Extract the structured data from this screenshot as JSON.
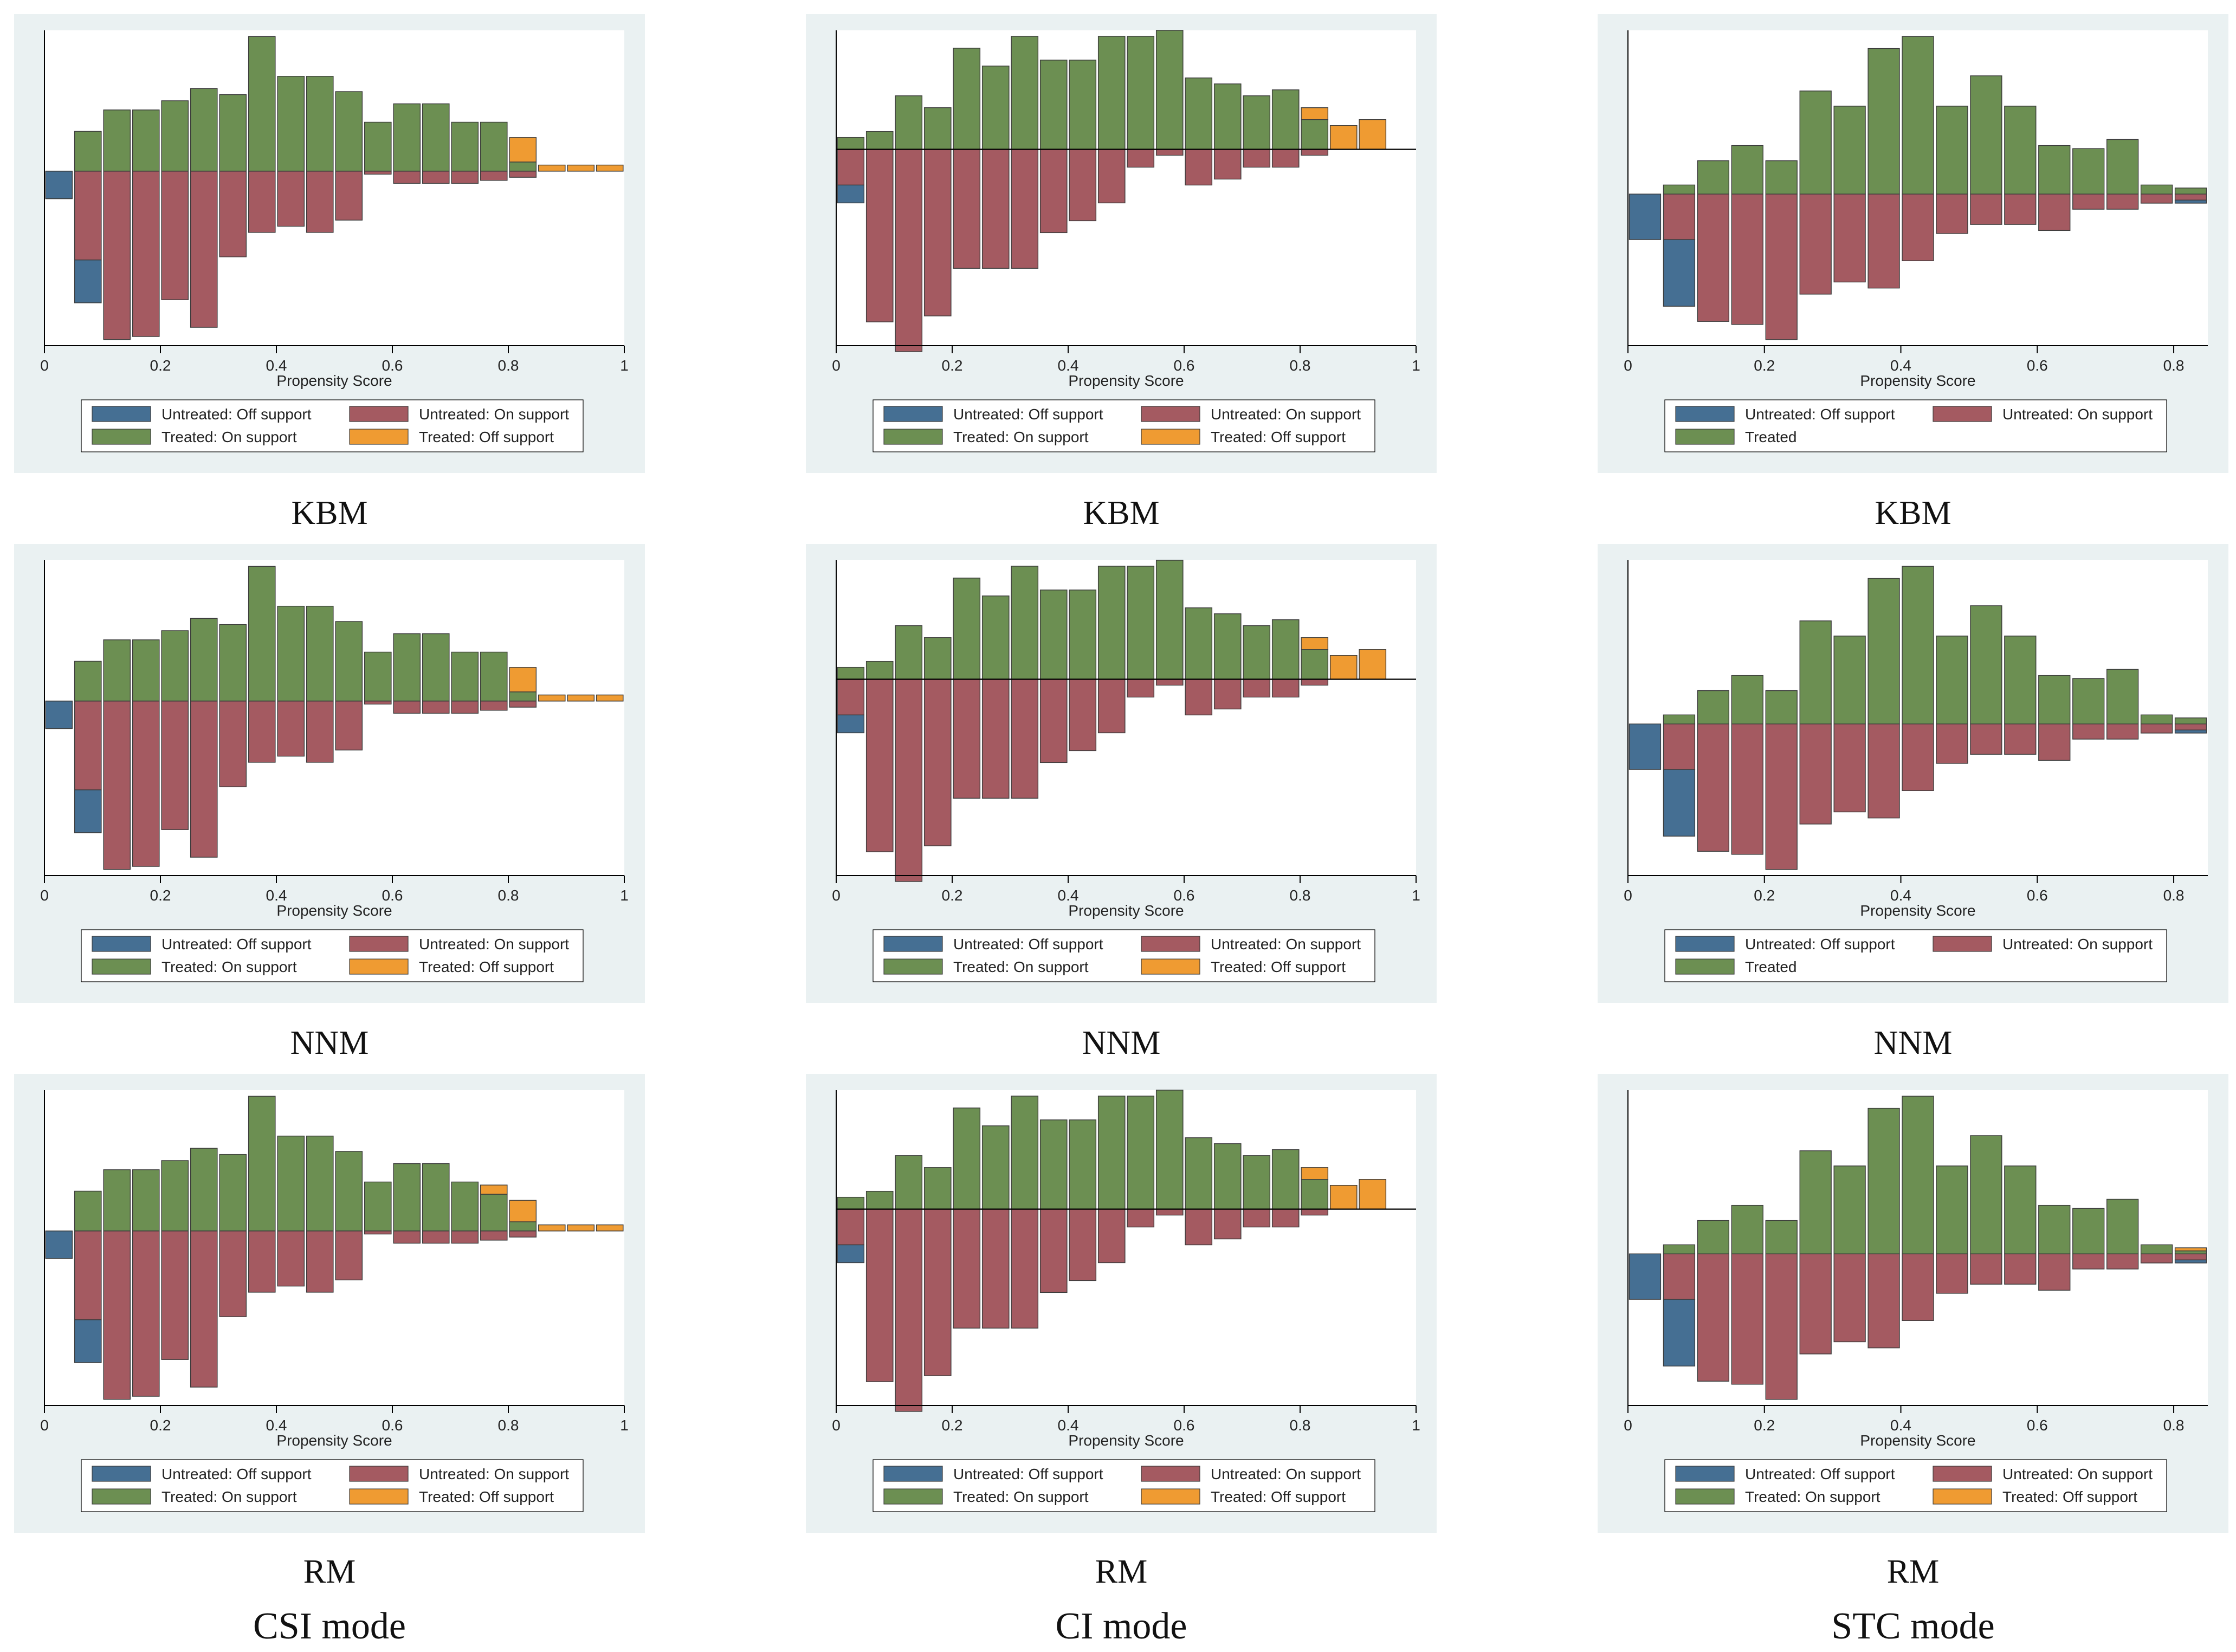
{
  "colors": {
    "untreated_off": "#456f93",
    "untreated_on": "#a45a61",
    "treated_on": "#6c8f52",
    "treated_off": "#ef9b32",
    "panel_bg": "#eaf1f2"
  },
  "captions": {
    "row1": "KBM",
    "row2": "NNM",
    "row3": "RM"
  },
  "modes": [
    "CSI mode",
    "CI mode",
    "STC mode"
  ],
  "legend_labels": {
    "untreated_off": "Untreated: Off support",
    "untreated_on": "Untreated: On support",
    "treated_on": "Treated: On support",
    "treated_off": "Treated: Off support",
    "treated": "Treated"
  },
  "axis": {
    "xlabel": "Propensity Score"
  },
  "chart_data": [
    {
      "type": "bar",
      "panel": "r1c1",
      "mode": "CSI mode",
      "method": "KBM",
      "xlabel": "Propensity Score",
      "xlim": [
        0,
        1
      ],
      "ticks": [
        "0",
        "0.2",
        "0.4",
        "0.6",
        "0.8",
        "1"
      ],
      "tick_values": [
        0,
        0.2,
        0.4,
        0.6,
        0.8,
        1
      ],
      "ylim": [
        -0.57,
        0.46
      ],
      "bin_width": 0.05,
      "legend": [
        "untreated_off",
        "untreated_on",
        "treated_on",
        "treated_off"
      ],
      "bins": [
        0.025,
        0.075,
        0.125,
        0.175,
        0.225,
        0.275,
        0.325,
        0.375,
        0.425,
        0.475,
        0.525,
        0.575,
        0.625,
        0.675,
        0.725,
        0.775,
        0.825,
        0.875,
        0.925,
        0.975
      ],
      "treated_on": [
        0,
        0.13,
        0.2,
        0.2,
        0.23,
        0.27,
        0.25,
        0.44,
        0.31,
        0.31,
        0.26,
        0.16,
        0.22,
        0.22,
        0.16,
        0.16,
        0.03,
        0,
        0,
        0
      ],
      "treated_off": [
        0,
        0,
        0,
        0,
        0,
        0,
        0,
        0,
        0,
        0,
        0,
        0,
        0,
        0,
        0,
        0,
        0.08,
        0.02,
        0.02,
        0.02
      ],
      "untreated_on": [
        0,
        0.29,
        0.55,
        0.54,
        0.42,
        0.51,
        0.28,
        0.2,
        0.18,
        0.2,
        0.16,
        0.01,
        0.04,
        0.04,
        0.04,
        0.03,
        0.02,
        0,
        0,
        0
      ],
      "untreated_off": [
        0.09,
        0.14,
        0,
        0,
        0,
        0,
        0,
        0,
        0,
        0,
        0,
        0,
        0,
        0,
        0,
        0,
        0,
        0,
        0,
        0
      ]
    },
    {
      "type": "bar",
      "panel": "r1c2",
      "mode": "CI mode",
      "method": "KBM",
      "xlabel": "Propensity Score",
      "xlim": [
        0,
        1
      ],
      "ticks": [
        "0",
        "0.2",
        "0.4",
        "0.6",
        "0.8",
        "1"
      ],
      "tick_values": [
        0,
        0.2,
        0.4,
        0.6,
        0.8,
        1
      ],
      "ylim": [
        -0.33,
        0.2
      ],
      "bin_width": 0.05,
      "zero_line": true,
      "legend": [
        "untreated_off",
        "untreated_on",
        "treated_on",
        "treated_off"
      ],
      "bins": [
        0.025,
        0.075,
        0.125,
        0.175,
        0.225,
        0.275,
        0.325,
        0.375,
        0.425,
        0.475,
        0.525,
        0.575,
        0.625,
        0.675,
        0.725,
        0.775,
        0.825,
        0.875,
        0.925,
        0.975
      ],
      "treated_on": [
        0.02,
        0.03,
        0.09,
        0.07,
        0.17,
        0.14,
        0.19,
        0.15,
        0.15,
        0.19,
        0.19,
        0.2,
        0.12,
        0.11,
        0.09,
        0.1,
        0.05,
        0,
        0,
        0
      ],
      "treated_off": [
        0,
        0,
        0,
        0,
        0,
        0,
        0,
        0,
        0,
        0,
        0,
        0,
        0,
        0,
        0,
        0,
        0.02,
        0.04,
        0.05,
        0
      ],
      "untreated_on": [
        0.06,
        0.29,
        0.34,
        0.28,
        0.2,
        0.2,
        0.2,
        0.14,
        0.12,
        0.09,
        0.03,
        0.01,
        0.06,
        0.05,
        0.03,
        0.03,
        0.01,
        0,
        0,
        0
      ],
      "untreated_off": [
        0.03,
        0,
        0,
        0,
        0,
        0,
        0,
        0,
        0,
        0,
        0,
        0,
        0,
        0,
        0,
        0,
        0,
        0,
        0,
        0
      ]
    },
    {
      "type": "bar",
      "panel": "r1c3",
      "mode": "STC mode",
      "method": "KBM",
      "xlabel": "Propensity Score",
      "xlim": [
        0,
        0.85
      ],
      "ticks": [
        "0",
        "0.2",
        "0.4",
        "0.6",
        "0.8"
      ],
      "tick_values": [
        0,
        0.2,
        0.4,
        0.6,
        0.8
      ],
      "ylim": [
        -0.5,
        0.54
      ],
      "bin_width": 0.05,
      "legend": [
        "untreated_off",
        "untreated_on",
        "treated"
      ],
      "bins": [
        0.025,
        0.075,
        0.125,
        0.175,
        0.225,
        0.275,
        0.325,
        0.375,
        0.425,
        0.475,
        0.525,
        0.575,
        0.625,
        0.675,
        0.725,
        0.775,
        0.825
      ],
      "treated_on": [
        0,
        0.03,
        0.11,
        0.16,
        0.11,
        0.34,
        0.29,
        0.48,
        0.52,
        0.29,
        0.39,
        0.29,
        0.16,
        0.15,
        0.18,
        0.03,
        0.02
      ],
      "treated_off": [
        0,
        0,
        0,
        0,
        0,
        0,
        0,
        0,
        0,
        0,
        0,
        0,
        0,
        0,
        0,
        0,
        0
      ],
      "untreated_on": [
        0,
        0.15,
        0.42,
        0.43,
        0.48,
        0.33,
        0.29,
        0.31,
        0.22,
        0.13,
        0.1,
        0.1,
        0.12,
        0.05,
        0.05,
        0.03,
        0.02
      ],
      "untreated_off": [
        0.15,
        0.22,
        0,
        0,
        0,
        0,
        0,
        0,
        0,
        0,
        0,
        0,
        0,
        0,
        0,
        0,
        0.01
      ]
    },
    {
      "type": "bar",
      "panel": "r2c1",
      "mode": "CSI mode",
      "method": "NNM",
      "xlabel": "Propensity Score",
      "xlim": [
        0,
        1
      ],
      "ticks": [
        "0",
        "0.2",
        "0.4",
        "0.6",
        "0.8",
        "1"
      ],
      "tick_values": [
        0,
        0.2,
        0.4,
        0.6,
        0.8,
        1
      ],
      "ylim": [
        -0.57,
        0.46
      ],
      "bin_width": 0.05,
      "legend": [
        "untreated_off",
        "untreated_on",
        "treated_on",
        "treated_off"
      ],
      "bins": [
        0.025,
        0.075,
        0.125,
        0.175,
        0.225,
        0.275,
        0.325,
        0.375,
        0.425,
        0.475,
        0.525,
        0.575,
        0.625,
        0.675,
        0.725,
        0.775,
        0.825,
        0.875,
        0.925,
        0.975
      ],
      "treated_on": [
        0,
        0.13,
        0.2,
        0.2,
        0.23,
        0.27,
        0.25,
        0.44,
        0.31,
        0.31,
        0.26,
        0.16,
        0.22,
        0.22,
        0.16,
        0.16,
        0.03,
        0,
        0,
        0
      ],
      "treated_off": [
        0,
        0,
        0,
        0,
        0,
        0,
        0,
        0,
        0,
        0,
        0,
        0,
        0,
        0,
        0,
        0,
        0.08,
        0.02,
        0.02,
        0.02
      ],
      "untreated_on": [
        0,
        0.29,
        0.55,
        0.54,
        0.42,
        0.51,
        0.28,
        0.2,
        0.18,
        0.2,
        0.16,
        0.01,
        0.04,
        0.04,
        0.04,
        0.03,
        0.02,
        0,
        0,
        0
      ],
      "untreated_off": [
        0.09,
        0.14,
        0,
        0,
        0,
        0,
        0,
        0,
        0,
        0,
        0,
        0,
        0,
        0,
        0,
        0,
        0,
        0,
        0,
        0
      ]
    },
    {
      "type": "bar",
      "panel": "r2c2",
      "mode": "CI mode",
      "method": "NNM",
      "xlabel": "Propensity Score",
      "xlim": [
        0,
        1
      ],
      "ticks": [
        "0",
        "0.2",
        "0.4",
        "0.6",
        "0.8",
        "1"
      ],
      "tick_values": [
        0,
        0.2,
        0.4,
        0.6,
        0.8,
        1
      ],
      "ylim": [
        -0.33,
        0.2
      ],
      "bin_width": 0.05,
      "zero_line": true,
      "legend": [
        "untreated_off",
        "untreated_on",
        "treated_on",
        "treated_off"
      ],
      "bins": [
        0.025,
        0.075,
        0.125,
        0.175,
        0.225,
        0.275,
        0.325,
        0.375,
        0.425,
        0.475,
        0.525,
        0.575,
        0.625,
        0.675,
        0.725,
        0.775,
        0.825,
        0.875,
        0.925,
        0.975
      ],
      "treated_on": [
        0.02,
        0.03,
        0.09,
        0.07,
        0.17,
        0.14,
        0.19,
        0.15,
        0.15,
        0.19,
        0.19,
        0.2,
        0.12,
        0.11,
        0.09,
        0.1,
        0.05,
        0,
        0,
        0
      ],
      "treated_off": [
        0,
        0,
        0,
        0,
        0,
        0,
        0,
        0,
        0,
        0,
        0,
        0,
        0,
        0,
        0,
        0,
        0.02,
        0.04,
        0.05,
        0
      ],
      "untreated_on": [
        0.06,
        0.29,
        0.34,
        0.28,
        0.2,
        0.2,
        0.2,
        0.14,
        0.12,
        0.09,
        0.03,
        0.01,
        0.06,
        0.05,
        0.03,
        0.03,
        0.01,
        0,
        0,
        0
      ],
      "untreated_off": [
        0.03,
        0,
        0,
        0,
        0,
        0,
        0,
        0,
        0,
        0,
        0,
        0,
        0,
        0,
        0,
        0,
        0,
        0,
        0,
        0
      ]
    },
    {
      "type": "bar",
      "panel": "r2c3",
      "mode": "STC mode",
      "method": "NNM",
      "xlabel": "Propensity Score",
      "xlim": [
        0,
        0.85
      ],
      "ticks": [
        "0",
        "0.2",
        "0.4",
        "0.6",
        "0.8"
      ],
      "tick_values": [
        0,
        0.2,
        0.4,
        0.6,
        0.8
      ],
      "ylim": [
        -0.5,
        0.54
      ],
      "bin_width": 0.05,
      "legend": [
        "untreated_off",
        "untreated_on",
        "treated"
      ],
      "bins": [
        0.025,
        0.075,
        0.125,
        0.175,
        0.225,
        0.275,
        0.325,
        0.375,
        0.425,
        0.475,
        0.525,
        0.575,
        0.625,
        0.675,
        0.725,
        0.775,
        0.825
      ],
      "treated_on": [
        0,
        0.03,
        0.11,
        0.16,
        0.11,
        0.34,
        0.29,
        0.48,
        0.52,
        0.29,
        0.39,
        0.29,
        0.16,
        0.15,
        0.18,
        0.03,
        0.02
      ],
      "treated_off": [
        0,
        0,
        0,
        0,
        0,
        0,
        0,
        0,
        0,
        0,
        0,
        0,
        0,
        0,
        0,
        0,
        0
      ],
      "untreated_on": [
        0,
        0.15,
        0.42,
        0.43,
        0.48,
        0.33,
        0.29,
        0.31,
        0.22,
        0.13,
        0.1,
        0.1,
        0.12,
        0.05,
        0.05,
        0.03,
        0.02
      ],
      "untreated_off": [
        0.15,
        0.22,
        0,
        0,
        0,
        0,
        0,
        0,
        0,
        0,
        0,
        0,
        0,
        0,
        0,
        0,
        0.01
      ]
    },
    {
      "type": "bar",
      "panel": "r3c1",
      "mode": "CSI mode",
      "method": "RM",
      "xlabel": "Propensity Score",
      "xlim": [
        0,
        1
      ],
      "ticks": [
        "0",
        "0.2",
        "0.4",
        "0.6",
        "0.8",
        "1"
      ],
      "tick_values": [
        0,
        0.2,
        0.4,
        0.6,
        0.8,
        1
      ],
      "ylim": [
        -0.57,
        0.46
      ],
      "bin_width": 0.05,
      "legend": [
        "untreated_off",
        "untreated_on",
        "treated_on",
        "treated_off"
      ],
      "bins": [
        0.025,
        0.075,
        0.125,
        0.175,
        0.225,
        0.275,
        0.325,
        0.375,
        0.425,
        0.475,
        0.525,
        0.575,
        0.625,
        0.675,
        0.725,
        0.775,
        0.825,
        0.875,
        0.925,
        0.975
      ],
      "treated_on": [
        0,
        0.13,
        0.2,
        0.2,
        0.23,
        0.27,
        0.25,
        0.44,
        0.31,
        0.31,
        0.26,
        0.16,
        0.22,
        0.22,
        0.16,
        0.12,
        0.03,
        0,
        0,
        0
      ],
      "treated_off": [
        0,
        0,
        0,
        0,
        0,
        0,
        0,
        0,
        0,
        0,
        0,
        0,
        0,
        0,
        0,
        0.03,
        0.07,
        0.02,
        0.02,
        0.02
      ],
      "untreated_on": [
        0,
        0.29,
        0.55,
        0.54,
        0.42,
        0.51,
        0.28,
        0.2,
        0.18,
        0.2,
        0.16,
        0.01,
        0.04,
        0.04,
        0.04,
        0.03,
        0.02,
        0,
        0,
        0
      ],
      "untreated_off": [
        0.09,
        0.14,
        0,
        0,
        0,
        0,
        0,
        0,
        0,
        0,
        0,
        0,
        0,
        0,
        0,
        0,
        0,
        0,
        0,
        0
      ]
    },
    {
      "type": "bar",
      "panel": "r3c2",
      "mode": "CI mode",
      "method": "RM",
      "xlabel": "Propensity Score",
      "xlim": [
        0,
        1
      ],
      "ticks": [
        "0",
        "0.2",
        "0.4",
        "0.6",
        "0.8",
        "1"
      ],
      "tick_values": [
        0,
        0.2,
        0.4,
        0.6,
        0.8,
        1
      ],
      "ylim": [
        -0.33,
        0.2
      ],
      "bin_width": 0.05,
      "zero_line": true,
      "legend": [
        "untreated_off",
        "untreated_on",
        "treated_on",
        "treated_off"
      ],
      "bins": [
        0.025,
        0.075,
        0.125,
        0.175,
        0.225,
        0.275,
        0.325,
        0.375,
        0.425,
        0.475,
        0.525,
        0.575,
        0.625,
        0.675,
        0.725,
        0.775,
        0.825,
        0.875,
        0.925,
        0.975
      ],
      "treated_on": [
        0.02,
        0.03,
        0.09,
        0.07,
        0.17,
        0.14,
        0.19,
        0.15,
        0.15,
        0.19,
        0.19,
        0.2,
        0.12,
        0.11,
        0.09,
        0.1,
        0.05,
        0,
        0,
        0
      ],
      "treated_off": [
        0,
        0,
        0,
        0,
        0,
        0,
        0,
        0,
        0,
        0,
        0,
        0,
        0,
        0,
        0,
        0,
        0.02,
        0.04,
        0.05,
        0
      ],
      "untreated_on": [
        0.06,
        0.29,
        0.34,
        0.28,
        0.2,
        0.2,
        0.2,
        0.14,
        0.12,
        0.09,
        0.03,
        0.01,
        0.06,
        0.05,
        0.03,
        0.03,
        0.01,
        0,
        0,
        0
      ],
      "untreated_off": [
        0.03,
        0,
        0,
        0,
        0,
        0,
        0,
        0,
        0,
        0,
        0,
        0,
        0,
        0,
        0,
        0,
        0,
        0,
        0,
        0
      ]
    },
    {
      "type": "bar",
      "panel": "r3c3",
      "mode": "STC mode",
      "method": "RM",
      "xlabel": "Propensity Score",
      "xlim": [
        0,
        0.85
      ],
      "ticks": [
        "0",
        "0.2",
        "0.4",
        "0.6",
        "0.8"
      ],
      "tick_values": [
        0,
        0.2,
        0.4,
        0.6,
        0.8
      ],
      "ylim": [
        -0.5,
        0.54
      ],
      "bin_width": 0.05,
      "legend": [
        "untreated_off",
        "untreated_on",
        "treated_on",
        "treated_off"
      ],
      "bins": [
        0.025,
        0.075,
        0.125,
        0.175,
        0.225,
        0.275,
        0.325,
        0.375,
        0.425,
        0.475,
        0.525,
        0.575,
        0.625,
        0.675,
        0.725,
        0.775,
        0.825
      ],
      "treated_on": [
        0,
        0.03,
        0.11,
        0.16,
        0.11,
        0.34,
        0.29,
        0.48,
        0.52,
        0.29,
        0.39,
        0.29,
        0.16,
        0.15,
        0.18,
        0.03,
        0.01
      ],
      "treated_off": [
        0,
        0,
        0,
        0,
        0,
        0,
        0,
        0,
        0,
        0,
        0,
        0,
        0,
        0,
        0,
        0,
        0.01
      ],
      "untreated_on": [
        0,
        0.15,
        0.42,
        0.43,
        0.48,
        0.33,
        0.29,
        0.31,
        0.22,
        0.13,
        0.1,
        0.1,
        0.12,
        0.05,
        0.05,
        0.03,
        0.02
      ],
      "untreated_off": [
        0.15,
        0.22,
        0,
        0,
        0,
        0,
        0,
        0,
        0,
        0,
        0,
        0,
        0,
        0,
        0,
        0,
        0.01
      ]
    }
  ]
}
